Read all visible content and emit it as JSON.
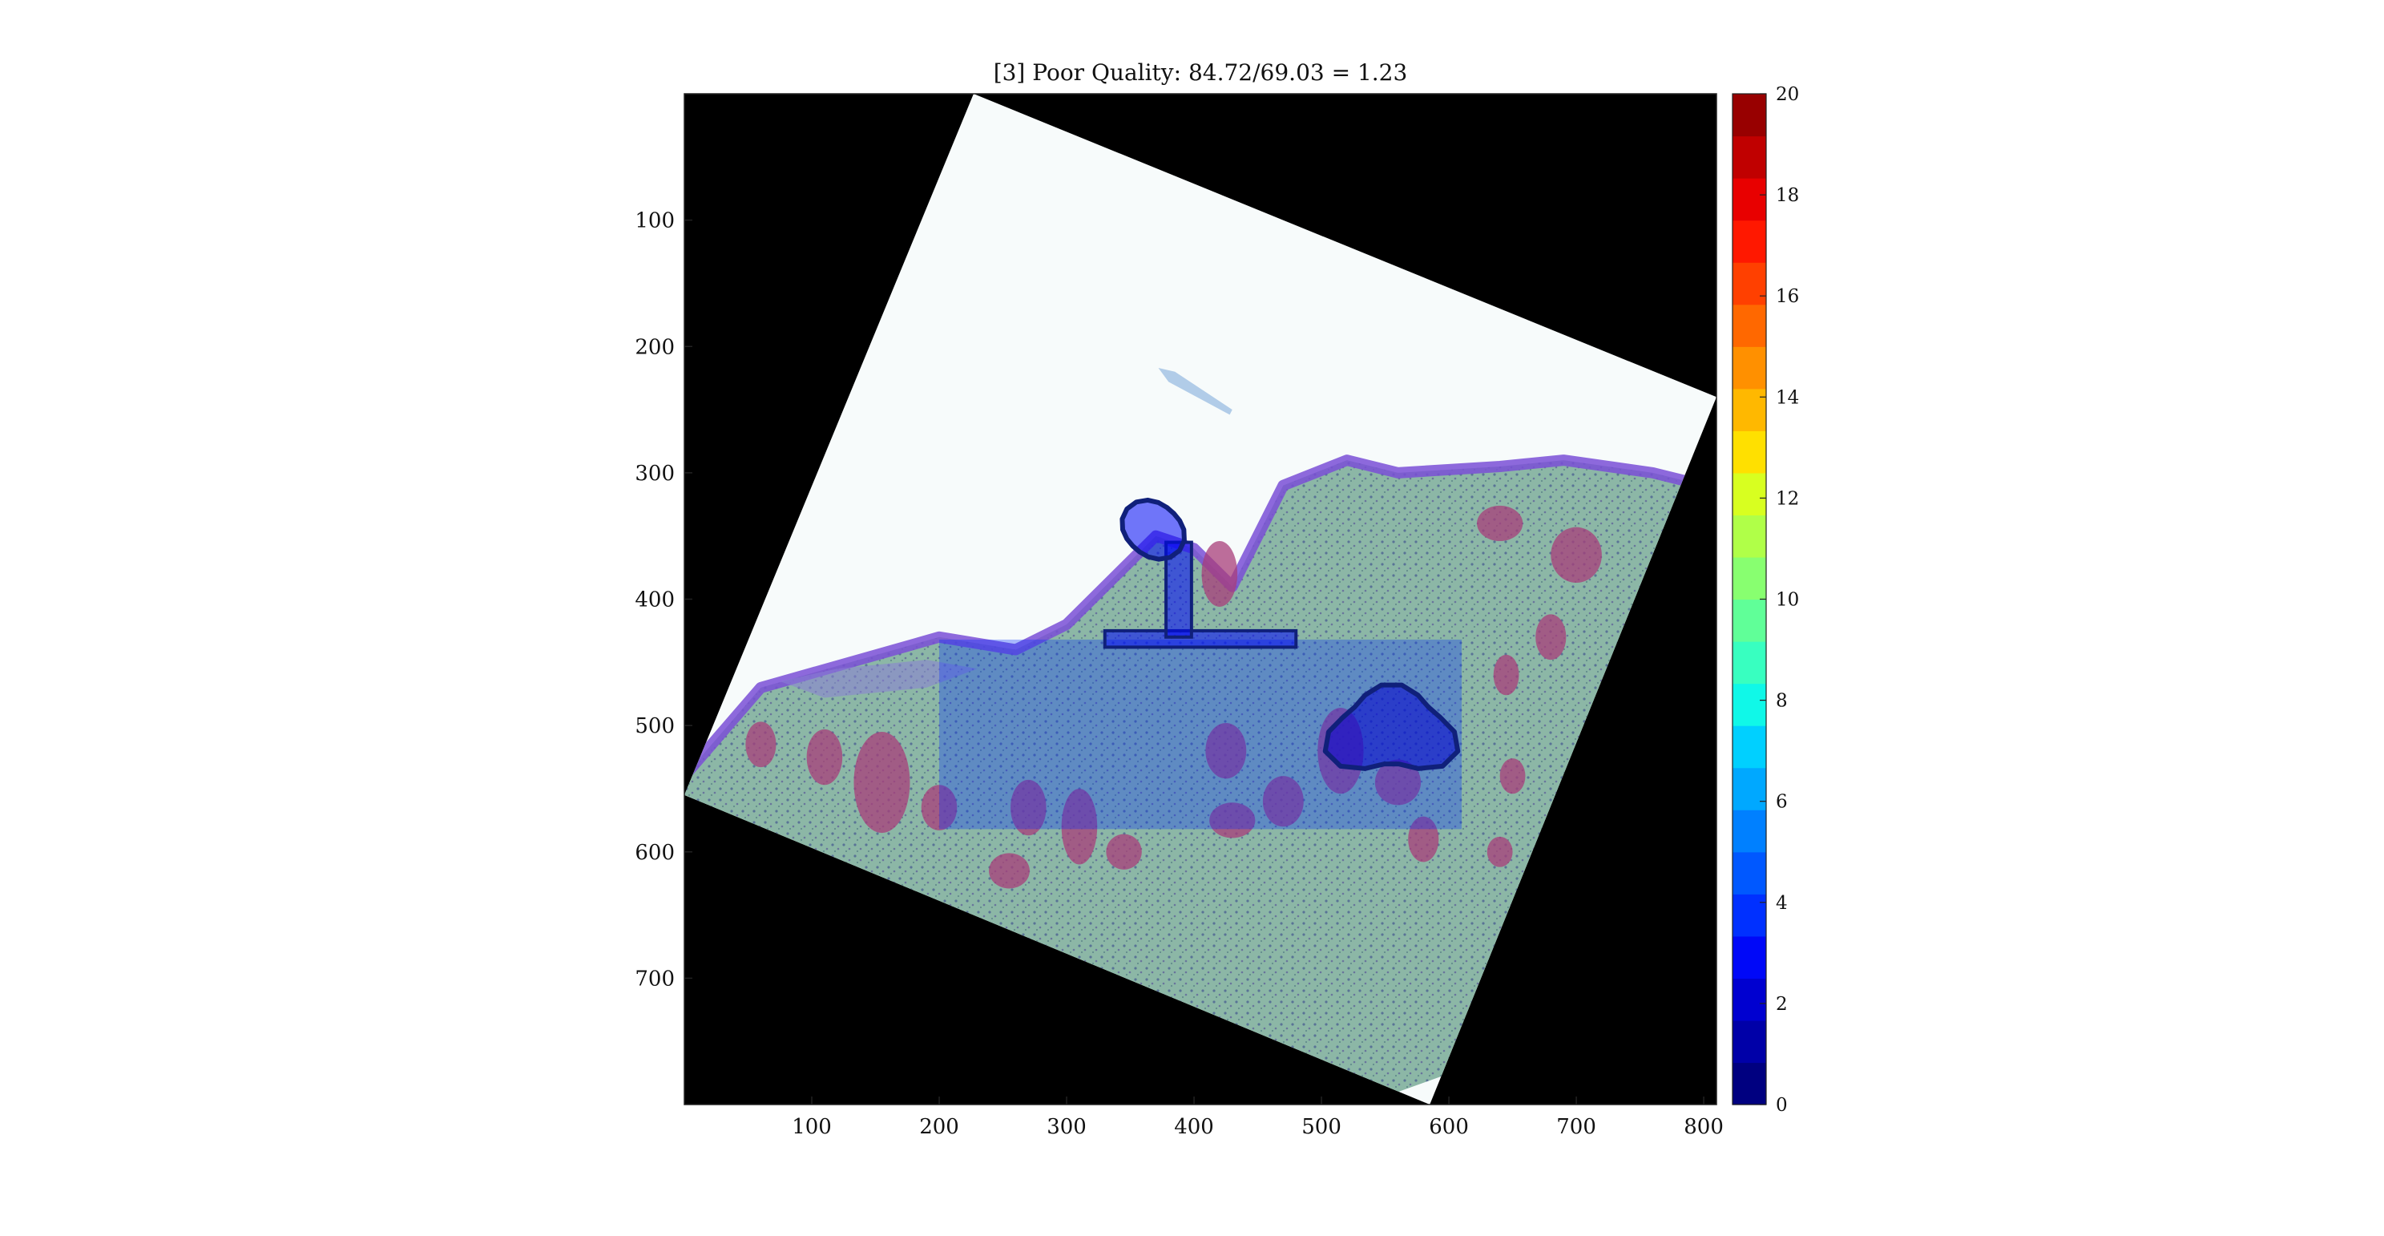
{
  "chart_data": {
    "type": "heatmap",
    "title": "[3] Poor Quality: 84.72/69.03 = 1.23",
    "xlabel": "",
    "ylabel": "",
    "xlim": [
      0,
      810
    ],
    "ylim": [
      800,
      0
    ],
    "x_ticks": [
      100,
      200,
      300,
      400,
      500,
      600,
      700,
      800
    ],
    "y_ticks": [
      100,
      200,
      300,
      400,
      500,
      600,
      700
    ],
    "grid": false,
    "image": {
      "background": "#000000",
      "tile_corners": [
        [
          227,
          0
        ],
        [
          810,
          240
        ],
        [
          585,
          800
        ],
        [
          0,
          555
        ]
      ],
      "tile_color": "#f7fbfb",
      "tissue_colors": {
        "stroma": "#7fae9c",
        "gland": "#a83d7a",
        "epithelium": "#7a4fd6"
      },
      "highlight_regions": [
        {
          "shape": "rectangle",
          "x": [
            200,
            610
          ],
          "y": [
            432,
            582
          ],
          "value": 4
        },
        {
          "shape": "bar",
          "x": [
            330,
            480
          ],
          "y": [
            425,
            438
          ],
          "value": 3
        },
        {
          "shape": "stem",
          "x": [
            378,
            398
          ],
          "y": [
            355,
            430
          ],
          "value": 3
        },
        {
          "shape": "blob",
          "center": [
            368,
            345
          ],
          "value": 3
        },
        {
          "shape": "blob",
          "center": [
            555,
            505
          ],
          "value": 2
        }
      ]
    },
    "colorbar": {
      "colormap": "jet",
      "levels": 20,
      "min": 0,
      "max": 20,
      "ticks": [
        0,
        2,
        4,
        6,
        8,
        10,
        12,
        14,
        16,
        18,
        20
      ],
      "colors": [
        "#000080",
        "#0000a8",
        "#0000d0",
        "#0008f8",
        "#0030ff",
        "#0058ff",
        "#0080ff",
        "#00a8ff",
        "#00d0ff",
        "#10f8e8",
        "#38ffc0",
        "#60ff98",
        "#88ff70",
        "#b0ff48",
        "#d8ff20",
        "#ffe000",
        "#ffb800",
        "#ff9000",
        "#ff6800",
        "#ff4000",
        "#ff1800",
        "#e80000",
        "#c00000",
        "#980000"
      ]
    }
  }
}
